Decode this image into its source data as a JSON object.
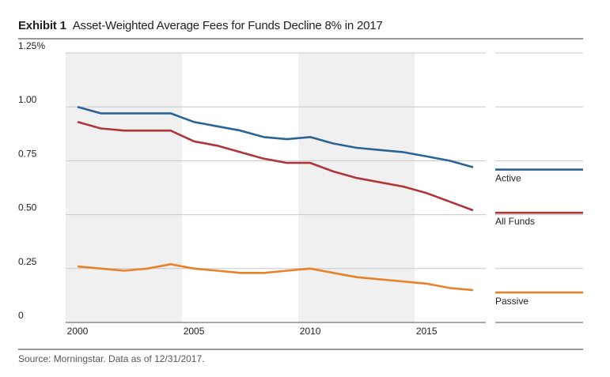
{
  "header": {
    "exhibit_label": "Exhibit 1",
    "title_text": "Asset-Weighted Average Fees for Funds Decline 8% in 2017"
  },
  "footer": {
    "source": "Source: Morningstar. Data as of 12/31/2017."
  },
  "chart_data": {
    "type": "line",
    "title": "Asset-Weighted Average Fees for Funds Decline 8% in 2017",
    "xlabel": "",
    "ylabel": "",
    "xlim": [
      2000,
      2017
    ],
    "ylim": [
      0,
      1.25
    ],
    "x_ticks": [
      2000,
      2005,
      2010,
      2015
    ],
    "x_tick_labels": [
      "2000",
      "2005",
      "2010",
      "2015"
    ],
    "y_ticks": [
      0,
      0.25,
      0.5,
      0.75,
      1.0,
      1.25
    ],
    "y_tick_labels": [
      "0",
      "0.25",
      "0.50",
      "0.75",
      "1.00",
      "1.25%"
    ],
    "grid": "horizontal",
    "legend_placement": "right",
    "shaded_bands": [
      {
        "from": 2000,
        "to": 2005,
        "color": "#f0f0f0"
      },
      {
        "from": 2010,
        "to": 2015,
        "color": "#f0f0f0"
      }
    ],
    "x": [
      2000,
      2001,
      2002,
      2003,
      2004,
      2005,
      2006,
      2007,
      2008,
      2009,
      2010,
      2011,
      2012,
      2013,
      2014,
      2015,
      2016,
      2017
    ],
    "series": [
      {
        "name": "Active",
        "color": "#2a6496",
        "values": [
          1.0,
          0.97,
          0.97,
          0.97,
          0.97,
          0.93,
          0.91,
          0.89,
          0.86,
          0.85,
          0.86,
          0.83,
          0.81,
          0.8,
          0.79,
          0.77,
          0.75,
          0.72
        ]
      },
      {
        "name": "All Funds",
        "color": "#b0353a",
        "values": [
          0.93,
          0.9,
          0.89,
          0.89,
          0.89,
          0.84,
          0.82,
          0.79,
          0.76,
          0.74,
          0.74,
          0.7,
          0.67,
          0.65,
          0.63,
          0.6,
          0.56,
          0.52
        ]
      },
      {
        "name": "Passive",
        "color": "#e8822a",
        "values": [
          0.26,
          0.25,
          0.24,
          0.25,
          0.27,
          0.25,
          0.24,
          0.23,
          0.23,
          0.24,
          0.25,
          0.23,
          0.21,
          0.2,
          0.19,
          0.18,
          0.16,
          0.15
        ]
      }
    ]
  }
}
